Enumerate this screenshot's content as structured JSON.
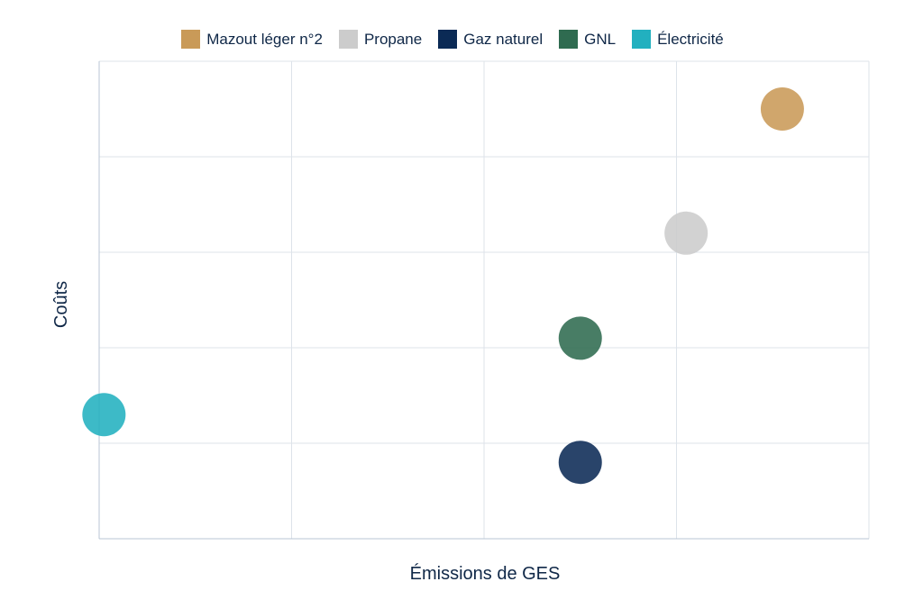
{
  "chart_data": {
    "type": "scatter",
    "title": "",
    "xlabel": "Émissions de GES",
    "ylabel": "Coûts",
    "xlim": [
      0,
      8
    ],
    "ylim": [
      0,
      5
    ],
    "grid": true,
    "legend_position": "top-center",
    "tick_labels_shown": false,
    "series": [
      {
        "name": "Mazout léger n°2",
        "color": "#c99a58",
        "x": [
          7.1
        ],
        "y": [
          4.5
        ]
      },
      {
        "name": "Propane",
        "color": "#cccccc",
        "x": [
          6.1
        ],
        "y": [
          3.2
        ]
      },
      {
        "name": "Gaz naturel",
        "color": "#0b2a55",
        "x": [
          5.0
        ],
        "y": [
          0.8
        ]
      },
      {
        "name": "GNL",
        "color": "#2f6b50",
        "x": [
          5.0
        ],
        "y": [
          2.1
        ]
      },
      {
        "name": "Électricité",
        "color": "#22b0bf",
        "x": [
          0.05
        ],
        "y": [
          1.3
        ]
      }
    ]
  }
}
